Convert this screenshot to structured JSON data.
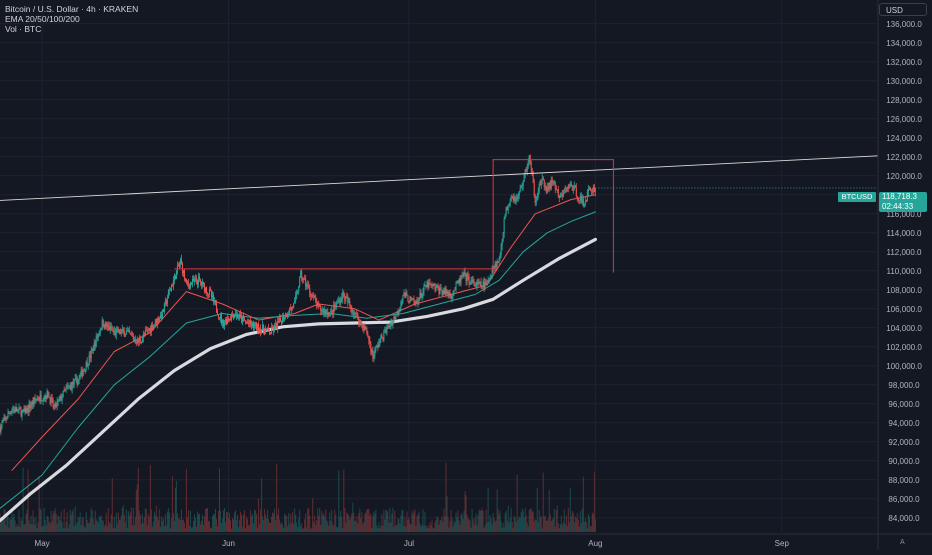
{
  "legend": {
    "title": "Bitcoin / U.S. Dollar · 4h · KRAKEN",
    "ema": "EMA 20/50/100/200",
    "vol": "Vol · BTC"
  },
  "currency_button": "USD",
  "auto_label": "A",
  "price_tag": {
    "ticker": "BTCUSD",
    "price": "118,718.3",
    "countdown": "02:44:33"
  },
  "colors": {
    "background": "#141823",
    "up": "#26a69a",
    "down": "#ef5350",
    "ema20": "#ef5350",
    "ema50": "#26a69a",
    "ema200": "#d9dadf",
    "trendline": "#d9d9d9",
    "range_box": "#e0343c"
  },
  "chart_data": {
    "type": "candlestick",
    "symbol": "BTCUSD",
    "timeframe": "4h",
    "exchange": "KRAKEN",
    "ylim": [
      82500,
      138500
    ],
    "y_ticks": [
      "84,000.0",
      "86,000.0",
      "88,000.0",
      "90,000.0",
      "92,000.0",
      "94,000.0",
      "96,000.0",
      "98,000.0",
      "100,000.0",
      "102,000.0",
      "104,000.0",
      "106,000.0",
      "108,000.0",
      "110,000.0",
      "112,000.0",
      "114,000.0",
      "116,000.0",
      "118,000.0",
      "120,000.0",
      "122,000.0",
      "124,000.0",
      "126,000.0",
      "128,000.0",
      "130,000.0",
      "132,000.0",
      "134,000.0",
      "136,000.0"
    ],
    "x_ticks": [
      "May",
      "Jun",
      "Jul",
      "Aug",
      "Sep"
    ],
    "x_tick_days": [
      0,
      31,
      61,
      92,
      123
    ],
    "x_domain_days": [
      -7,
      139
    ],
    "last_price": 118718.3,
    "price_path": [
      {
        "day": -7,
        "price": 93500
      },
      {
        "day": -5,
        "price": 95500
      },
      {
        "day": -3,
        "price": 95000
      },
      {
        "day": -1,
        "price": 96500
      },
      {
        "day": 1,
        "price": 97000
      },
      {
        "day": 2,
        "price": 95500
      },
      {
        "day": 4,
        "price": 97500
      },
      {
        "day": 6,
        "price": 98500
      },
      {
        "day": 8,
        "price": 101000
      },
      {
        "day": 10,
        "price": 104500
      },
      {
        "day": 12,
        "price": 103500
      },
      {
        "day": 14,
        "price": 103500
      },
      {
        "day": 16,
        "price": 102500
      },
      {
        "day": 18,
        "price": 104000
      },
      {
        "day": 20,
        "price": 105500
      },
      {
        "day": 21,
        "price": 107500
      },
      {
        "day": 23,
        "price": 111000
      },
      {
        "day": 24,
        "price": 108500
      },
      {
        "day": 26,
        "price": 109000
      },
      {
        "day": 28,
        "price": 107500
      },
      {
        "day": 30,
        "price": 104500
      },
      {
        "day": 32,
        "price": 105500
      },
      {
        "day": 34,
        "price": 104500
      },
      {
        "day": 36,
        "price": 104000
      },
      {
        "day": 38,
        "price": 103500
      },
      {
        "day": 40,
        "price": 105000
      },
      {
        "day": 42,
        "price": 106500
      },
      {
        "day": 43,
        "price": 109500
      },
      {
        "day": 44,
        "price": 108500
      },
      {
        "day": 46,
        "price": 106000
      },
      {
        "day": 48,
        "price": 105500
      },
      {
        "day": 50,
        "price": 107500
      },
      {
        "day": 52,
        "price": 105500
      },
      {
        "day": 54,
        "price": 103500
      },
      {
        "day": 55,
        "price": 101000
      },
      {
        "day": 56,
        "price": 102500
      },
      {
        "day": 57,
        "price": 103500
      },
      {
        "day": 59,
        "price": 105500
      },
      {
        "day": 60,
        "price": 107500
      },
      {
        "day": 62,
        "price": 106500
      },
      {
        "day": 64,
        "price": 108500
      },
      {
        "day": 66,
        "price": 108000
      },
      {
        "day": 68,
        "price": 107500
      },
      {
        "day": 70,
        "price": 109500
      },
      {
        "day": 72,
        "price": 108500
      },
      {
        "day": 74,
        "price": 108500
      },
      {
        "day": 75,
        "price": 110500
      },
      {
        "day": 76,
        "price": 111000
      },
      {
        "day": 77,
        "price": 116000
      },
      {
        "day": 78,
        "price": 118000
      },
      {
        "day": 79,
        "price": 117500
      },
      {
        "day": 80,
        "price": 119500
      },
      {
        "day": 81,
        "price": 122000
      },
      {
        "day": 82,
        "price": 117500
      },
      {
        "day": 83,
        "price": 119500
      },
      {
        "day": 84,
        "price": 118500
      },
      {
        "day": 85,
        "price": 119500
      },
      {
        "day": 86,
        "price": 117500
      },
      {
        "day": 87,
        "price": 118500
      },
      {
        "day": 88,
        "price": 119000
      },
      {
        "day": 89,
        "price": 118000
      },
      {
        "day": 90,
        "price": 117000
      },
      {
        "day": 91,
        "price": 118500
      },
      {
        "day": 92,
        "price": 118718
      }
    ],
    "series": [
      {
        "name": "EMA 20",
        "points": [
          {
            "day": -5,
            "price": 89000
          },
          {
            "day": 0,
            "price": 92500
          },
          {
            "day": 6,
            "price": 96500
          },
          {
            "day": 12,
            "price": 101500
          },
          {
            "day": 18,
            "price": 103500
          },
          {
            "day": 24,
            "price": 107800
          },
          {
            "day": 30,
            "price": 106500
          },
          {
            "day": 36,
            "price": 104800
          },
          {
            "day": 42,
            "price": 105500
          },
          {
            "day": 46,
            "price": 106500
          },
          {
            "day": 52,
            "price": 106000
          },
          {
            "day": 56,
            "price": 104800
          },
          {
            "day": 62,
            "price": 106500
          },
          {
            "day": 68,
            "price": 107500
          },
          {
            "day": 74,
            "price": 108500
          },
          {
            "day": 78,
            "price": 112500
          },
          {
            "day": 82,
            "price": 116000
          },
          {
            "day": 88,
            "price": 117500
          },
          {
            "day": 92,
            "price": 118000
          }
        ]
      },
      {
        "name": "EMA 50",
        "points": [
          {
            "day": -7,
            "price": 85000
          },
          {
            "day": 0,
            "price": 88500
          },
          {
            "day": 6,
            "price": 93500
          },
          {
            "day": 12,
            "price": 98000
          },
          {
            "day": 18,
            "price": 101000
          },
          {
            "day": 24,
            "price": 104500
          },
          {
            "day": 30,
            "price": 105500
          },
          {
            "day": 36,
            "price": 105000
          },
          {
            "day": 42,
            "price": 105300
          },
          {
            "day": 48,
            "price": 105500
          },
          {
            "day": 54,
            "price": 105000
          },
          {
            "day": 60,
            "price": 105500
          },
          {
            "day": 66,
            "price": 106500
          },
          {
            "day": 72,
            "price": 107500
          },
          {
            "day": 76,
            "price": 109000
          },
          {
            "day": 80,
            "price": 112000
          },
          {
            "day": 84,
            "price": 114000
          },
          {
            "day": 88,
            "price": 115200
          },
          {
            "day": 92,
            "price": 116200
          }
        ]
      },
      {
        "name": "EMA 200",
        "points": [
          {
            "day": -7,
            "price": 83700
          },
          {
            "day": -2,
            "price": 86500
          },
          {
            "day": 4,
            "price": 89500
          },
          {
            "day": 10,
            "price": 93000
          },
          {
            "day": 16,
            "price": 96500
          },
          {
            "day": 22,
            "price": 99500
          },
          {
            "day": 28,
            "price": 101800
          },
          {
            "day": 34,
            "price": 103300
          },
          {
            "day": 40,
            "price": 104100
          },
          {
            "day": 46,
            "price": 104400
          },
          {
            "day": 52,
            "price": 104500
          },
          {
            "day": 58,
            "price": 104600
          },
          {
            "day": 64,
            "price": 105200
          },
          {
            "day": 70,
            "price": 106000
          },
          {
            "day": 75,
            "price": 107000
          },
          {
            "day": 80,
            "price": 109000
          },
          {
            "day": 86,
            "price": 111300
          },
          {
            "day": 92,
            "price": 113300
          }
        ]
      }
    ],
    "drawings": {
      "trendline": [
        {
          "day": -7,
          "price": 117400
        },
        {
          "day": 139,
          "price": 122100
        }
      ],
      "resistance_line": {
        "day_start": 22,
        "day_end": 75,
        "price": 110200
      },
      "range_box": {
        "day_start": 75,
        "day_end": 95,
        "price_top": 121700,
        "price_bottom": 109800
      }
    }
  }
}
